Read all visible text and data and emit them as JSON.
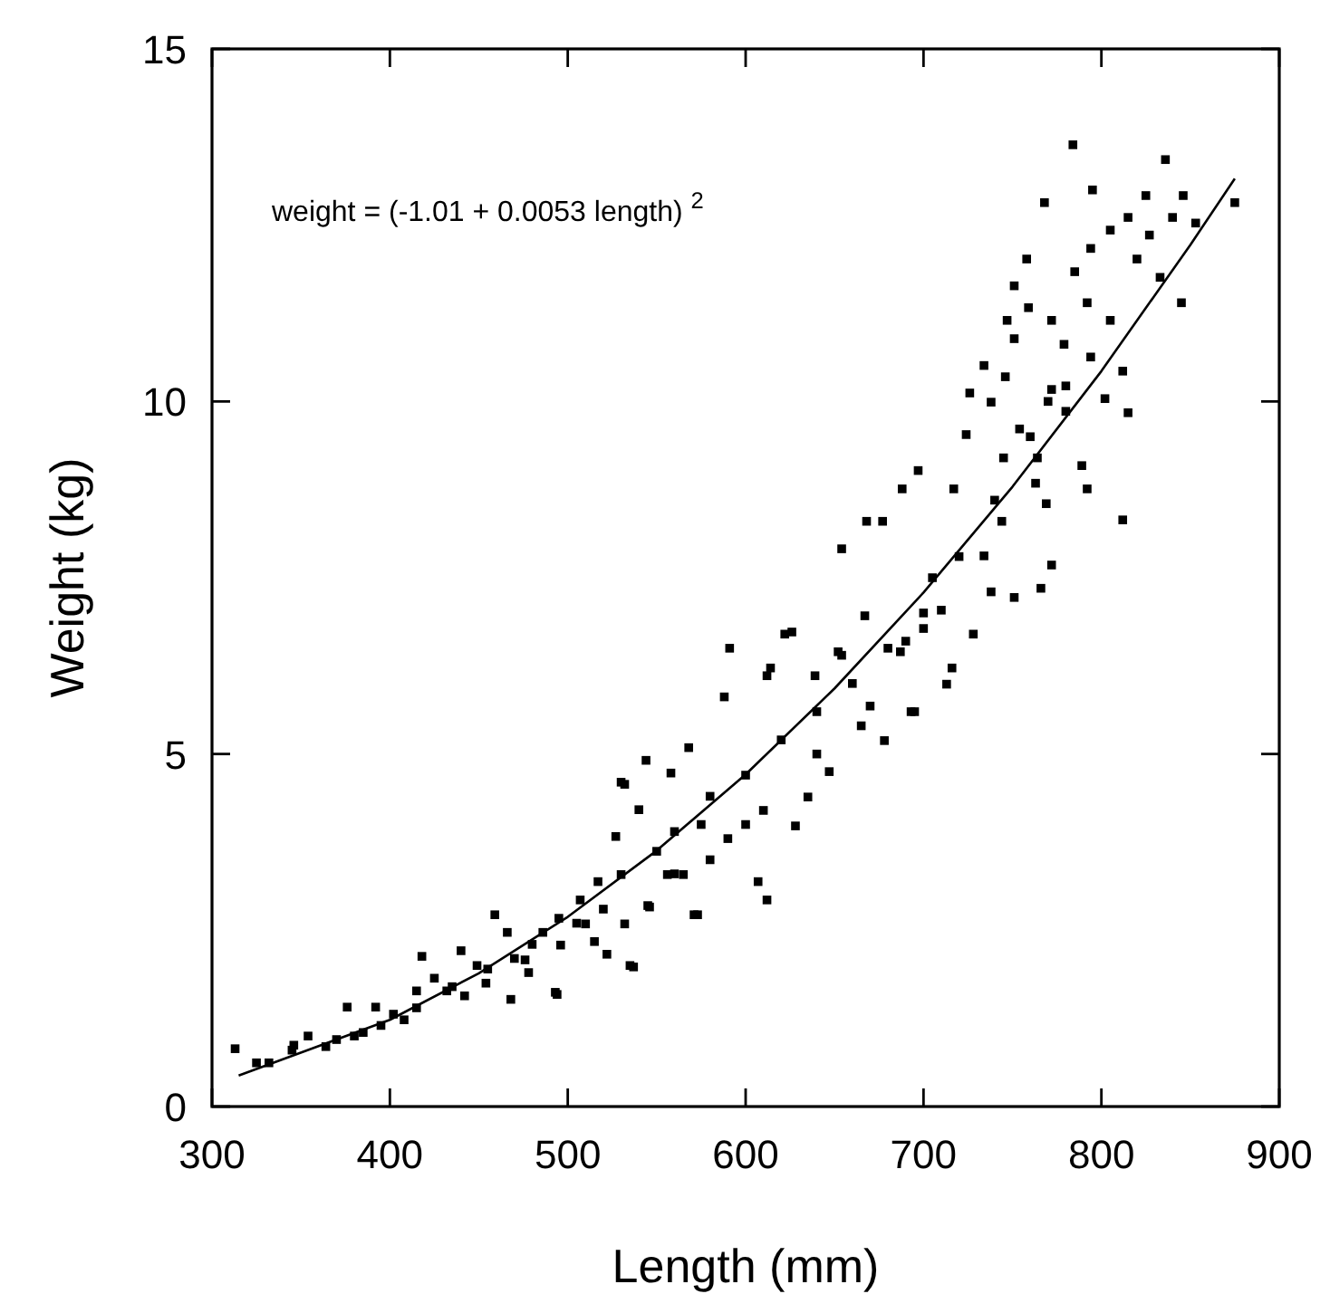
{
  "chart_data": {
    "type": "scatter",
    "xlabel": "Length (mm)",
    "ylabel": "Weight (kg)",
    "annotations": [
      "weight = (-1.01 + 0.0053 length) $^{2}$"
    ],
    "xlim": [
      300,
      900
    ],
    "xticks": [
      300,
      400,
      500,
      600,
      700,
      800,
      900
    ],
    "ylim": [
      0,
      15
    ],
    "yticks": [
      0,
      5,
      10,
      15
    ],
    "grid": false,
    "marker": "square",
    "series": [
      {
        "color": "#000000",
        "x": [
          313,
          325,
          332,
          346,
          354,
          364,
          376,
          385,
          392,
          402,
          408,
          418,
          415,
          425,
          432,
          440,
          442,
          449,
          454,
          459,
          468,
          466,
          476,
          478,
          486,
          493,
          496,
          495,
          507,
          510,
          515,
          517,
          522,
          527,
          532,
          530,
          535,
          530,
          540,
          545,
          544,
          550,
          558,
          556,
          565,
          571,
          568,
          591,
          588,
          622,
          612,
          639,
          652,
          654,
          670,
          668,
          677,
          667,
          688,
          697,
          687,
          693,
          700,
          710,
          713,
          717,
          724,
          728,
          734,
          738,
          744,
          751,
          766,
          772,
          726,
          734,
          738,
          746,
          754,
          751,
          747,
          759,
          758,
          751,
          763,
          764,
          769,
          772,
          779,
          780,
          772,
          768,
          780,
          785,
          784,
          789,
          792,
          792,
          795,
          794,
          802,
          805,
          805,
          812,
          815,
          812,
          815,
          820,
          825,
          827,
          833,
          836,
          840,
          845,
          846,
          853,
          875,
          794,
          626,
          614,
          654,
          678,
          695,
          716,
          628,
          607,
          612,
          573,
          537,
          494,
          647,
          635,
          532,
          546,
          560,
          580,
          600,
          610,
          620,
          640,
          660,
          680,
          700,
          720,
          740,
          760,
          600,
          590,
          575,
          580,
          560,
          520,
          505,
          480,
          470,
          455,
          435,
          415,
          395,
          380,
          370,
          345,
          640,
          665,
          690,
          705,
          745,
          770
        ],
        "values": [
          0.82,
          0.62,
          0.62,
          0.87,
          1.0,
          0.85,
          1.41,
          1.05,
          1.41,
          1.31,
          1.23,
          2.13,
          1.64,
          1.82,
          1.64,
          2.21,
          1.57,
          2.0,
          1.75,
          2.72,
          1.52,
          2.47,
          2.08,
          1.9,
          2.47,
          1.62,
          2.29,
          2.67,
          2.93,
          2.59,
          2.34,
          3.19,
          2.16,
          3.83,
          2.59,
          3.29,
          2.0,
          4.6,
          4.21,
          2.85,
          4.91,
          3.62,
          4.73,
          3.29,
          3.29,
          2.72,
          5.09,
          6.5,
          5.81,
          6.7,
          6.11,
          6.11,
          6.45,
          7.91,
          5.68,
          8.3,
          8.3,
          6.96,
          8.76,
          9.02,
          6.45,
          5.6,
          6.78,
          7.04,
          5.99,
          8.76,
          9.53,
          6.7,
          7.81,
          7.3,
          8.3,
          7.22,
          7.35,
          7.68,
          10.12,
          10.51,
          9.99,
          10.35,
          9.61,
          10.89,
          11.15,
          11.33,
          12.02,
          11.64,
          8.84,
          9.2,
          8.55,
          11.15,
          10.81,
          10.22,
          10.17,
          12.82,
          9.86,
          11.84,
          13.64,
          9.09,
          8.76,
          11.4,
          13.0,
          10.63,
          10.04,
          12.43,
          11.15,
          10.43,
          9.84,
          8.32,
          12.61,
          12.02,
          12.92,
          12.36,
          11.76,
          13.43,
          12.61,
          11.4,
          12.92,
          12.53,
          12.82,
          12.17,
          6.73,
          6.22,
          6.4,
          5.19,
          5.6,
          6.22,
          3.98,
          3.19,
          2.93,
          2.72,
          1.98,
          1.59,
          4.75,
          4.39,
          4.57,
          2.83,
          3.9,
          4.4,
          4.7,
          4.2,
          5.2,
          5.6,
          6.0,
          6.5,
          7.0,
          7.8,
          8.6,
          9.5,
          4.0,
          3.8,
          4.0,
          3.5,
          3.3,
          2.8,
          2.6,
          2.3,
          2.1,
          1.95,
          1.7,
          1.4,
          1.15,
          1.0,
          0.95,
          0.8,
          5.0,
          5.4,
          6.6,
          7.5,
          9.2,
          10.0
        ]
      },
      {
        "type": "line",
        "color": "#000000",
        "marker": "none",
        "x": [
          315,
          400,
          450,
          500,
          550,
          600,
          650,
          700,
          750,
          800,
          850,
          875
        ],
        "values": [
          0.44,
          1.23,
          1.89,
          2.69,
          3.63,
          4.71,
          5.93,
          7.29,
          8.79,
          10.43,
          12.22,
          13.16
        ]
      }
    ]
  }
}
